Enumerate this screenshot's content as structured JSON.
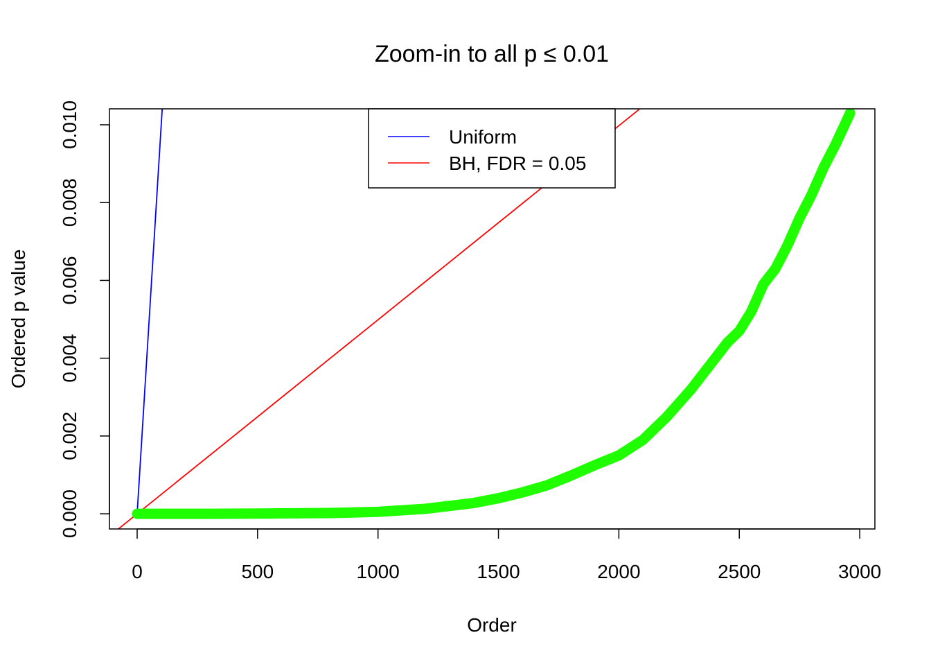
{
  "chart_data": {
    "type": "line",
    "title": "Zoom-in to all p ≤ 0.01",
    "xlabel": "Order",
    "ylabel": "Ordered p value",
    "xlim": [
      -115,
      3063
    ],
    "ylim": [
      -0.00039,
      0.01041
    ],
    "xticks": [
      0,
      500,
      1000,
      1500,
      2000,
      2500,
      3000
    ],
    "xtick_labels": [
      "0",
      "500",
      "1000",
      "1500",
      "2000",
      "2500",
      "3000"
    ],
    "yticks": [
      0,
      0.002,
      0.004,
      0.006,
      0.008,
      0.01
    ],
    "ytick_labels": [
      "0.000",
      "0.002",
      "0.004",
      "0.006",
      "0.008",
      "0.010"
    ],
    "grid": false,
    "legend": {
      "placement": "top-center",
      "entries": [
        {
          "label": "Uniform",
          "color": "#0000FF"
        },
        {
          "label": "BH, FDR = 0.05",
          "color": "#FF0000"
        }
      ]
    },
    "series": [
      {
        "name": "Uniform",
        "kind": "line",
        "color": "#0000FF",
        "x": [
          0,
          104
        ],
        "y": [
          0,
          0.0104
        ]
      },
      {
        "name": "BH, FDR = 0.05",
        "kind": "line",
        "color": "#FF0000",
        "x": [
          -80,
          2085
        ],
        "y": [
          -0.0004,
          0.0104
        ]
      },
      {
        "kind": "points",
        "color": "#1FFF00",
        "x": [
          0,
          300,
          600,
          800,
          1000,
          1200,
          1400,
          1500,
          1600,
          1700,
          1800,
          1900,
          2000,
          2100,
          2200,
          2300,
          2400,
          2450,
          2500,
          2550,
          2600,
          2650,
          2700,
          2750,
          2800,
          2850,
          2900,
          2960
        ],
        "y": [
          0,
          0,
          1e-05,
          2e-05,
          5e-05,
          0.00013,
          0.00028,
          0.0004,
          0.00055,
          0.00073,
          0.00098,
          0.00125,
          0.0015,
          0.0019,
          0.0025,
          0.0032,
          0.004,
          0.0044,
          0.0047,
          0.0052,
          0.0059,
          0.0063,
          0.0069,
          0.0076,
          0.0082,
          0.0089,
          0.0095,
          0.0103
        ]
      }
    ]
  }
}
